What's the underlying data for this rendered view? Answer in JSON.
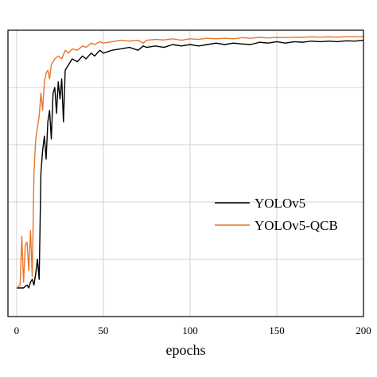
{
  "chart_data": {
    "type": "line",
    "title": "",
    "xlabel": "epochs",
    "ylabel": "",
    "xlim": [
      -5,
      200
    ],
    "ylim": [
      0,
      1
    ],
    "xticks": [
      0,
      50,
      100,
      150,
      200
    ],
    "xtick_labels": [
      "0",
      "50",
      "100",
      "150",
      "200"
    ],
    "ytick_values": [
      0.2,
      0.4,
      0.6,
      0.8
    ],
    "grid": true,
    "legend_position": "center-right",
    "series": [
      {
        "name": "YOLOv5",
        "color": "#000000",
        "x": [
          0,
          2,
          4,
          6,
          7,
          8,
          9,
          10,
          11,
          12,
          13,
          14,
          15,
          16,
          17,
          18,
          19,
          20,
          21,
          22,
          23,
          24,
          25,
          26,
          27,
          28,
          30,
          32,
          35,
          38,
          40,
          43,
          45,
          48,
          50,
          55,
          60,
          65,
          70,
          73,
          75,
          80,
          85,
          90,
          95,
          100,
          105,
          110,
          115,
          120,
          125,
          130,
          135,
          140,
          145,
          150,
          155,
          160,
          165,
          170,
          175,
          180,
          185,
          190,
          195,
          200
        ],
        "y": [
          0.1,
          0.1,
          0.1,
          0.11,
          0.1,
          0.12,
          0.13,
          0.11,
          0.15,
          0.2,
          0.13,
          0.5,
          0.58,
          0.63,
          0.55,
          0.68,
          0.72,
          0.62,
          0.78,
          0.8,
          0.71,
          0.82,
          0.76,
          0.83,
          0.68,
          0.86,
          0.88,
          0.9,
          0.89,
          0.91,
          0.9,
          0.92,
          0.91,
          0.93,
          0.92,
          0.93,
          0.935,
          0.94,
          0.93,
          0.945,
          0.94,
          0.945,
          0.94,
          0.95,
          0.945,
          0.95,
          0.945,
          0.95,
          0.955,
          0.95,
          0.955,
          0.952,
          0.95,
          0.958,
          0.955,
          0.96,
          0.955,
          0.96,
          0.958,
          0.962,
          0.96,
          0.962,
          0.96,
          0.963,
          0.962,
          0.965
        ]
      },
      {
        "name": "YOLOv5-QCB",
        "color": "#e8752a",
        "x": [
          0,
          2,
          3,
          4,
          5,
          6,
          7,
          8,
          9,
          10,
          11,
          12,
          13,
          14,
          15,
          16,
          17,
          18,
          19,
          20,
          22,
          24,
          26,
          28,
          30,
          32,
          35,
          38,
          40,
          43,
          45,
          48,
          50,
          55,
          60,
          65,
          70,
          73,
          75,
          80,
          85,
          90,
          95,
          100,
          105,
          110,
          115,
          120,
          125,
          130,
          135,
          140,
          145,
          150,
          155,
          160,
          165,
          170,
          175,
          180,
          185,
          190,
          195,
          200
        ],
        "y": [
          0.1,
          0.11,
          0.28,
          0.12,
          0.25,
          0.26,
          0.16,
          0.3,
          0.14,
          0.5,
          0.62,
          0.66,
          0.7,
          0.78,
          0.72,
          0.82,
          0.85,
          0.86,
          0.83,
          0.88,
          0.9,
          0.91,
          0.9,
          0.93,
          0.92,
          0.935,
          0.93,
          0.945,
          0.94,
          0.955,
          0.95,
          0.96,
          0.955,
          0.96,
          0.965,
          0.962,
          0.965,
          0.955,
          0.965,
          0.968,
          0.966,
          0.97,
          0.965,
          0.97,
          0.968,
          0.972,
          0.97,
          0.972,
          0.97,
          0.974,
          0.972,
          0.975,
          0.973,
          0.975,
          0.974,
          0.976,
          0.975,
          0.977,
          0.976,
          0.977,
          0.976,
          0.978,
          0.977,
          0.978
        ]
      }
    ]
  }
}
